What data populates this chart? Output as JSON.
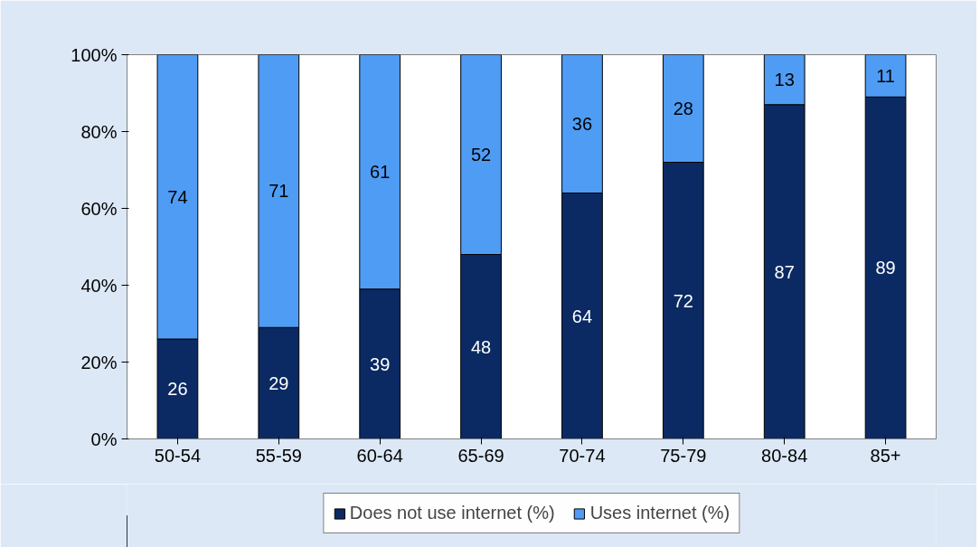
{
  "chart_data": {
    "type": "bar",
    "stacked": true,
    "data_labels": true,
    "legend": "bottom",
    "grid": false,
    "categories": [
      "50-54",
      "55-59",
      "60-64",
      "65-69",
      "70-74",
      "75-79",
      "80-84",
      "85+"
    ],
    "series": [
      {
        "name": "Does not use internet (%)",
        "color": "#0b2a63",
        "values": [
          26,
          29,
          39,
          48,
          64,
          72,
          87,
          89
        ]
      },
      {
        "name": "Uses internet (%)",
        "color": "#4f9cf4",
        "values": [
          74,
          71,
          61,
          52,
          36,
          28,
          13,
          11
        ]
      }
    ],
    "ylim": [
      0,
      100
    ],
    "yticks": [
      {
        "value": 0,
        "label": "0%"
      },
      {
        "value": 20,
        "label": "20%"
      },
      {
        "value": 40,
        "label": "40%"
      },
      {
        "value": 60,
        "label": "60%"
      },
      {
        "value": 80,
        "label": "80%"
      },
      {
        "value": 100,
        "label": "100%"
      }
    ]
  }
}
